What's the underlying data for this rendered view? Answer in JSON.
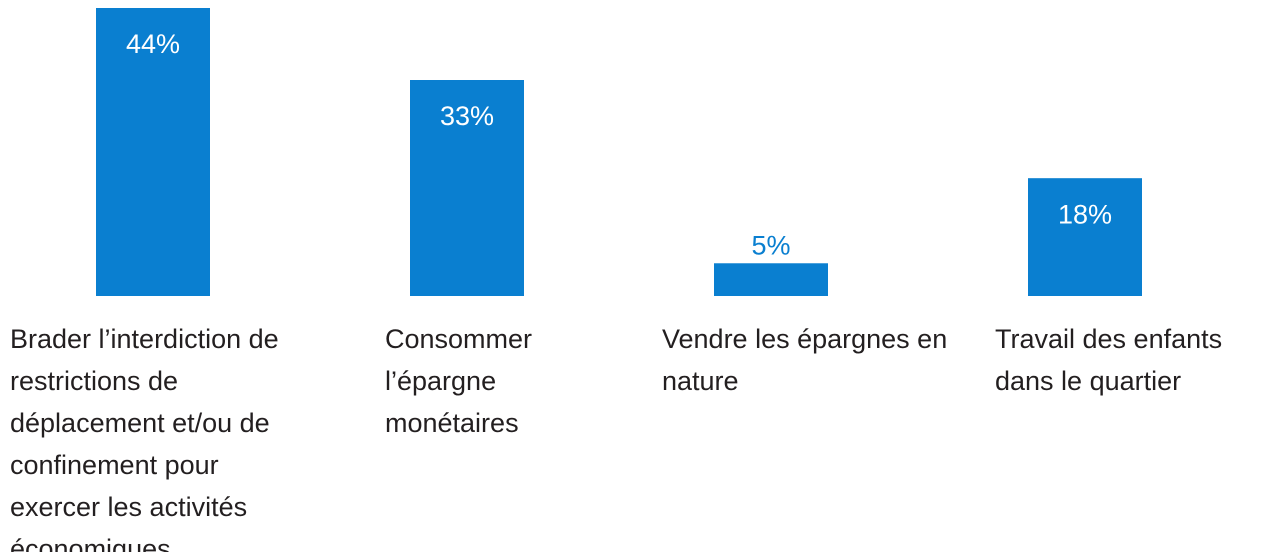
{
  "chart_data": {
    "type": "bar",
    "categories": [
      "Brader l’interdiction de restrictions de déplacement et/ou de confinement pour exercer les activités économiques",
      "Consommer l’épargne monétaires",
      "Vendre les épargnes en nature",
      "Travail des enfants dans le quartier"
    ],
    "values": [
      44,
      33,
      5,
      18
    ],
    "value_labels": [
      "44%",
      "33%",
      "5%",
      "18%"
    ],
    "color": "#0a7fd0",
    "ylim": [
      0,
      44
    ]
  }
}
